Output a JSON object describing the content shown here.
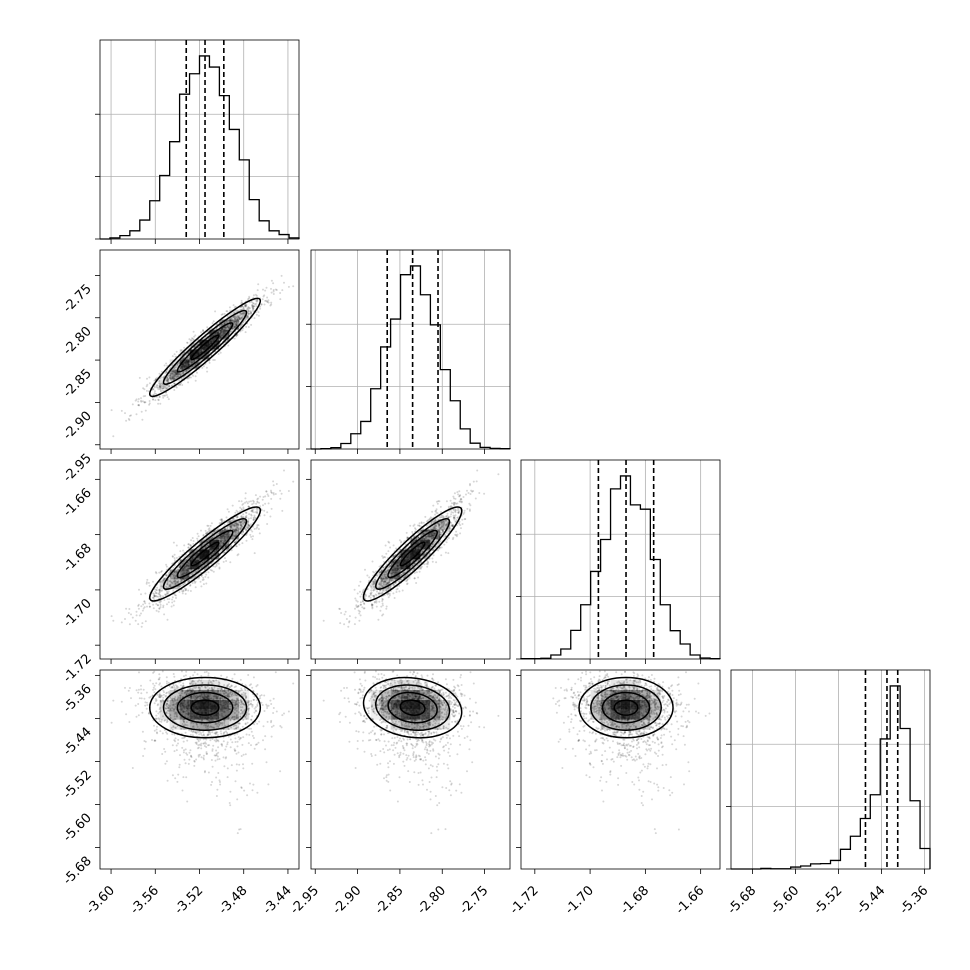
{
  "chart_data": {
    "type": "corner",
    "title": "",
    "parameters": [
      {
        "mean": -3.515,
        "sd": 0.025,
        "range": [
          -3.61,
          -3.43
        ],
        "ticks": [
          "-3.60",
          "-3.56",
          "-3.52",
          "-3.48",
          "-3.44"
        ],
        "quantiles": [
          -3.532,
          -3.515,
          -3.498
        ]
      },
      {
        "mean": -2.835,
        "sd": 0.029,
        "range": [
          -2.955,
          -2.72
        ],
        "ticks": [
          "-2.95",
          "-2.90",
          "-2.85",
          "-2.80",
          "-2.75"
        ],
        "quantiles": [
          -2.865,
          -2.835,
          -2.805
        ]
      },
      {
        "mean": -1.687,
        "sd": 0.0085,
        "range": [
          -1.725,
          -1.653
        ],
        "ticks": [
          "-1.72",
          "-1.70",
          "-1.68",
          "-1.66"
        ],
        "quantiles": [
          -1.697,
          -1.687,
          -1.677
        ]
      },
      {
        "mean": -5.42,
        "sd": 0.028,
        "range": [
          -5.72,
          -5.35
        ],
        "ticks": [
          "-5.68",
          "-5.60",
          "-5.52",
          "-5.44",
          "-5.36"
        ],
        "quantiles": [
          -5.47,
          -5.43,
          -5.41
        ],
        "skew_lower_tail": true
      }
    ],
    "histogram_style": "step",
    "quantile_lines": "dashed",
    "contours": "density levels with 2D histogram shading and scatter of samples",
    "correlations": {
      "1-0": 0.95,
      "2-0": 0.93,
      "2-1": 0.92,
      "3-0": 0.0,
      "3-1": -0.15,
      "3-2": 0.0
    },
    "grid": true
  }
}
